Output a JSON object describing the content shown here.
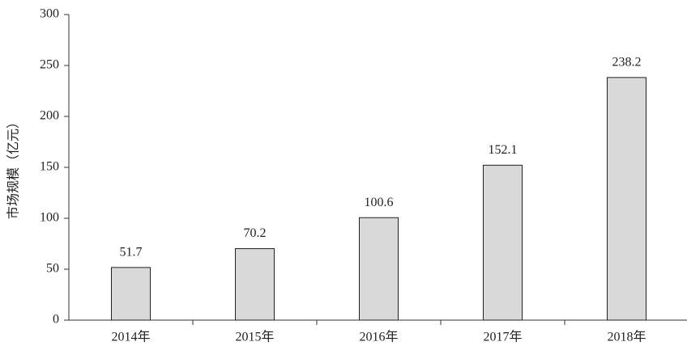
{
  "chart_data": {
    "type": "bar",
    "y_label": "市场规模（亿元）",
    "categories": [
      "2014年",
      "2015年",
      "2016年",
      "2017年",
      "2018年"
    ],
    "values": [
      51.7,
      70.2,
      100.6,
      152.1,
      238.2
    ],
    "color": "#d9d9d9",
    "ylim": [
      0,
      300
    ],
    "yticks": [
      0,
      50,
      100,
      150,
      200,
      250,
      300
    ],
    "grid": false,
    "data_labels": true
  }
}
